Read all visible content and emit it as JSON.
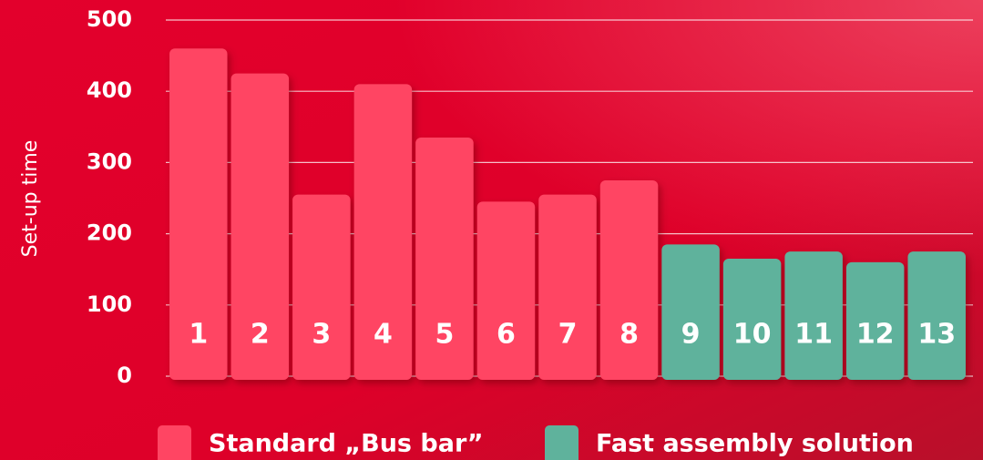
{
  "chart_data": {
    "type": "bar",
    "y_label": "Set-up time",
    "categories": [
      "1",
      "2",
      "3",
      "4",
      "5",
      "6",
      "7",
      "8",
      "9",
      "10",
      "11",
      "12",
      "13"
    ],
    "series": [
      {
        "name": "Standard „Bus bar”",
        "color": "#ff4563",
        "values": [
          460,
          425,
          255,
          410,
          335,
          245,
          255,
          275,
          null,
          null,
          null,
          null,
          null
        ]
      },
      {
        "name": "Fast assembly solution",
        "color": "#5fb29c",
        "values": [
          null,
          null,
          null,
          null,
          null,
          null,
          null,
          null,
          185,
          165,
          175,
          160,
          175
        ]
      }
    ],
    "ylim": [
      0,
      500
    ],
    "yticks": [
      0,
      100,
      200,
      300,
      400,
      500
    ],
    "grid": true
  }
}
